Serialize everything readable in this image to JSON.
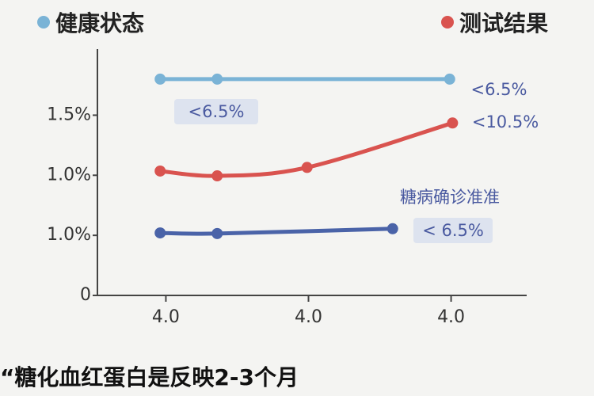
{
  "chart_data": {
    "type": "line",
    "legend_labels_top": true,
    "series": [
      {
        "name": "健康状态",
        "color": "#7ab3d6",
        "x": [
          0.96,
          1.36,
          2.99
        ],
        "values": [
          3.6,
          3.6,
          3.6
        ]
      },
      {
        "name": "测试结果",
        "color": "#d9534f",
        "x": [
          0.96,
          1.36,
          1.99,
          3.01
        ],
        "values": [
          2.07,
          1.99,
          2.13,
          2.87
        ]
      },
      {
        "name": null,
        "color": "#4a63a8",
        "x": [
          0.96,
          1.36,
          2.59
        ],
        "values": [
          1.04,
          1.03,
          1.11
        ]
      }
    ],
    "xlim": [
      0.52,
      3.53
    ],
    "xticks": [
      {
        "value": 1,
        "label": "4.0"
      },
      {
        "value": 2,
        "label": "4.0"
      },
      {
        "value": 3,
        "label": "4.0"
      }
    ],
    "ylim": [
      0,
      4.1
    ],
    "yticks": [
      0,
      {
        "value": 1,
        "label": "1.0%"
      },
      {
        "value": 2,
        "label": "1.0%"
      },
      {
        "value": 3,
        "label": "1.5%"
      }
    ],
    "annotations": [
      "<6.5%",
      "<6.5%",
      "<10.5%",
      "糖病确诊准准",
      "< 6.5%"
    ],
    "footnote": "“糖化血红蛋白是反映2-3个月"
  }
}
